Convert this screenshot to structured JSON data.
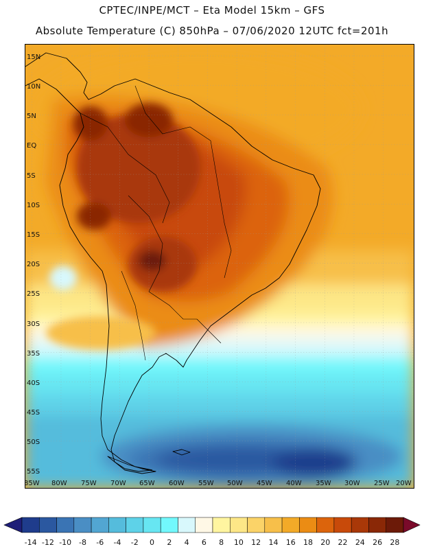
{
  "title": {
    "line1": "CPTEC/INPE/MCT –  Eta Model 15km – GFS",
    "line2": "Absolute Temperature (C) 850hPa – 07/06/2020 12UTC fct=201h"
  },
  "map": {
    "lat_labels": [
      "15N",
      "10N",
      "5N",
      "EQ",
      "5S",
      "10S",
      "15S",
      "20S",
      "25S",
      "30S",
      "35S",
      "40S",
      "45S",
      "50S",
      "55S"
    ],
    "lon_labels": [
      "85W",
      "80W",
      "75W",
      "70W",
      "65W",
      "60W",
      "55W",
      "50W",
      "45W",
      "40W",
      "35W",
      "30W",
      "25W",
      "20W"
    ]
  },
  "colorbar": {
    "labels": [
      "-14",
      "-12",
      "-10",
      "-8",
      "-6",
      "-4",
      "-2",
      "0",
      "2",
      "4",
      "6",
      "8",
      "10",
      "12",
      "14",
      "16",
      "18",
      "20",
      "22",
      "24",
      "26",
      "28"
    ],
    "colors": [
      "#1f3c8c",
      "#2b58a0",
      "#3a74b4",
      "#4a8ec4",
      "#52a6d2",
      "#55bcdc",
      "#5ed2e8",
      "#67e6f2",
      "#72f8fc",
      "#d8f8fc",
      "#fff8e6",
      "#fff5a0",
      "#fde787",
      "#fbd368",
      "#f7bf4a",
      "#f3aa28",
      "#eb8c14",
      "#dc640c",
      "#c84a0a",
      "#a93808",
      "#8a2806",
      "#6c1a08"
    ],
    "low_color": "#1e1e78",
    "high_color": "#7a0a2a"
  }
}
